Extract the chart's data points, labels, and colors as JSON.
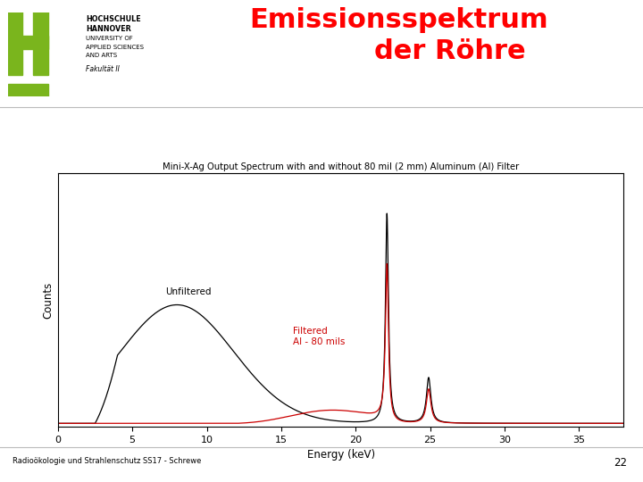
{
  "title_line1": "Emissionsspektrum",
  "title_line2": "der Röhre",
  "title_color": "#ff0000",
  "chart_title": "Mini-X-Ag Output Spectrum with and without 80 mil (2 mm) Aluminum (Al) Filter",
  "xlabel": "Energy (keV)",
  "ylabel": "Counts",
  "xlim": [
    0,
    38
  ],
  "xticks": [
    0,
    5,
    10,
    15,
    20,
    25,
    30,
    35
  ],
  "background_color": "#ffffff",
  "footer_text": "Radioökologie und Strahlenschutz SS17 - Schrewe",
  "page_number": "22",
  "label_unfiltered": "Unfiltered",
  "label_filtered": "Filtered\nAl - 80 mils",
  "label_filtered_color": "#cc0000",
  "fakultaet_text": "Fakultät II",
  "logo_green": "#7ab51d"
}
